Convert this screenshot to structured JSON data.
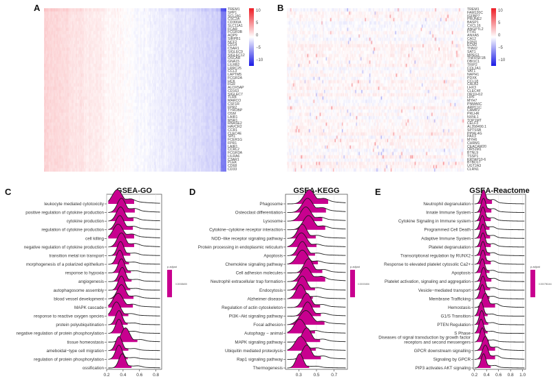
{
  "figure": {
    "panels": {
      "A": {
        "letter": "A"
      },
      "B": {
        "letter": "B"
      },
      "C": {
        "letter": "C"
      },
      "D": {
        "letter": "D"
      },
      "E": {
        "letter": "E"
      }
    }
  },
  "chart_data": [
    {
      "type": "heatmap",
      "panel": "A",
      "title": "",
      "genes": [
        "TREM1",
        "SPP1",
        "SCL2A1",
        "CSC2A",
        "CD300A",
        "SLC11A1",
        "FCAR",
        "FCGR3B",
        "AQP9",
        "SIRPB1",
        "NCF2",
        "CD14",
        "C5AR1",
        "SIGLEC9",
        "SIGLEC12",
        "OSCAR",
        "GNA15",
        "LILRB2",
        "LRRC25",
        "CCL3",
        "LAPTM5",
        "FCGR2A",
        "HCK",
        "FGR",
        "ALOX5AP",
        "CD163",
        "SIGLEC7",
        "TLR8",
        "MARCO",
        "CSF1R",
        "FPR2",
        "TYROBP",
        "OSM",
        "LAIR1",
        "MSR1",
        "RNASE2",
        "HAVCR2",
        "CCR1",
        "CLEC4E",
        "SPI1",
        "FCER1G",
        "FPR1",
        "LAIR1",
        "CCRL2",
        "FCGR3A",
        "LILRA6",
        "C3AR1",
        "PLEK",
        "CD68",
        "CD33"
      ],
      "pattern": "left columns up (red), right columns down (blue)",
      "colorbar": {
        "ticks": [
          "10",
          "5",
          "0",
          "−5",
          "−10"
        ],
        "min": -10,
        "max": 10,
        "colors": {
          "high": "#ee1c25",
          "mid": "#ffffff",
          "low": "#1a1ae6"
        }
      }
    },
    {
      "type": "heatmap",
      "panel": "B",
      "title": "",
      "genes": [
        "TREM1",
        "FAM120C",
        "IGFBP7",
        "PRUNE2",
        "BASP1",
        "CXCL16",
        "ANGPTL2",
        "FTH1",
        "ANXA5",
        "CA12",
        "EDN3",
        "ECM2",
        "TNNI2",
        "SAT1",
        "MPEG1",
        "TNFRSF1B",
        "DBI1C1",
        "TRIP2",
        "COL2A1",
        "VAT1",
        "NAPH1",
        "PDXK",
        "CCL18",
        "CALB2",
        "LHX3",
        "CLEC4F",
        "OR11H12",
        "LIPF",
        "MYH7",
        "PNMA6C",
        "ARPC1C",
        "CAMKV",
        "PRLHR",
        "NXNL1",
        "TOP1MT",
        "CELF3",
        "AL358490.1",
        "SPTSSB",
        "PPIAL4G",
        "PAX3",
        "MYH6",
        "CHRM1",
        "CEACAM20",
        "OR51M1",
        "BTNL9",
        "TSSP1",
        "KRTAP10-6",
        "BTBD17",
        "UGT2A3",
        "CLRN1"
      ],
      "pattern": "mostly near zero, scattered faint red/blue cells",
      "colorbar": {
        "ticks": [
          "10",
          "5",
          "0",
          "−5",
          "−10"
        ],
        "min": -10,
        "max": 10,
        "colors": {
          "high": "#ee1c25",
          "mid": "#ffffff",
          "low": "#1a1ae6"
        }
      }
    },
    {
      "type": "ridgeline",
      "panel": "C",
      "title": "GSEA-GO",
      "xlabel": "",
      "ylabel": "",
      "xlim": [
        0.2,
        0.87
      ],
      "xticks": [
        "0.2",
        "0.4",
        "0.6",
        "0.8"
      ],
      "xtick_values": [
        0.2,
        0.4,
        0.6,
        0.8
      ],
      "fill_color": "#c8008f",
      "legend": {
        "title": "p.adjust",
        "value_label": "0.00088455",
        "position": "right"
      },
      "categories": [
        {
          "label": "leukocyte mediated cytotoxicity",
          "peak": 0.33,
          "spread": 0.06,
          "tail": 0.5
        },
        {
          "label": "positive regulation of cytokine production",
          "peak": 0.38,
          "spread": 0.05,
          "tail": 0.45
        },
        {
          "label": "cytokine production",
          "peak": 0.37,
          "spread": 0.05,
          "tail": 0.4
        },
        {
          "label": "regulation of cytokine production",
          "peak": 0.36,
          "spread": 0.05,
          "tail": 0.4
        },
        {
          "label": "cell killing",
          "peak": 0.34,
          "spread": 0.06,
          "tail": 0.45
        },
        {
          "label": "negative regulation of cytokine production",
          "peak": 0.38,
          "spread": 0.05,
          "tail": 0.4
        },
        {
          "label": "transition metal ion transport",
          "peak": 0.37,
          "spread": 0.04,
          "tail": 0.35
        },
        {
          "label": "morphogenesis of a polarized epithelium",
          "peak": 0.36,
          "spread": 0.04,
          "tail": 0.3
        },
        {
          "label": "response to hypoxia",
          "peak": 0.38,
          "spread": 0.04,
          "tail": 0.3
        },
        {
          "label": "angiogenesis",
          "peak": 0.39,
          "spread": 0.04,
          "tail": 0.3
        },
        {
          "label": "autophagosome assembly",
          "peak": 0.38,
          "spread": 0.04,
          "tail": 0.25
        },
        {
          "label": "blood vessel development",
          "peak": 0.38,
          "spread": 0.05,
          "tail": 0.35
        },
        {
          "label": "MAPK cascade",
          "peak": 0.34,
          "spread": 0.06,
          "tail": 0.35
        },
        {
          "label": "response to reactive oxygen species",
          "peak": 0.32,
          "spread": 0.05,
          "tail": 0.3
        },
        {
          "label": "protein polyubiquitination",
          "peak": 0.35,
          "spread": 0.04,
          "tail": 0.25
        },
        {
          "label": "negative regulation of protein phosphorylation",
          "peak": 0.35,
          "spread": 0.04,
          "tail": 0.3
        },
        {
          "label": "tissue homeostasis",
          "peak": 0.43,
          "spread": 0.05,
          "tail": 0.3
        },
        {
          "label": "ameboidal−type cell migration",
          "peak": 0.35,
          "spread": 0.04,
          "tail": 0.3
        },
        {
          "label": "regulation of protein phosphorylation",
          "peak": 0.35,
          "spread": 0.04,
          "tail": 0.25
        },
        {
          "label": "ossification",
          "peak": 0.39,
          "spread": 0.04,
          "tail": 0.3
        }
      ]
    },
    {
      "type": "ridgeline",
      "panel": "D",
      "title": "GSEA-KEGG",
      "xlabel": "",
      "ylabel": "",
      "xlim": [
        0.15,
        0.85
      ],
      "xticks": [
        "0.3",
        "0.5",
        "0.7"
      ],
      "xtick_values": [
        0.3,
        0.5,
        0.7
      ],
      "fill_color": "#c8008f",
      "legend": {
        "title": "p.adjust",
        "value_label": "0.00000456",
        "position": "right"
      },
      "categories": [
        {
          "label": "Phagosome",
          "peak": 0.42,
          "spread": 0.06,
          "tail": 0.55
        },
        {
          "label": "Osteoclast differentiation",
          "peak": 0.4,
          "spread": 0.06,
          "tail": 0.5
        },
        {
          "label": "Lysosome",
          "peak": 0.38,
          "spread": 0.06,
          "tail": 0.4
        },
        {
          "label": "Cytokine−cytokine receptor interaction",
          "peak": 0.41,
          "spread": 0.06,
          "tail": 0.4
        },
        {
          "label": "NOD−like receptor signaling pathway",
          "peak": 0.34,
          "spread": 0.05,
          "tail": 0.35
        },
        {
          "label": "Protein processing in endoplasmic reticulum",
          "peak": 0.33,
          "spread": 0.06,
          "tail": 0.3
        },
        {
          "label": "Apoptosis",
          "peak": 0.34,
          "spread": 0.05,
          "tail": 0.3
        },
        {
          "label": "Chemokine signaling pathway",
          "peak": 0.34,
          "spread": 0.06,
          "tail": 0.35
        },
        {
          "label": "Cell adhesion molecules",
          "peak": 0.41,
          "spread": 0.05,
          "tail": 0.4
        },
        {
          "label": "Neutrophil extracellular trap formation",
          "peak": 0.38,
          "spread": 0.06,
          "tail": 0.55
        },
        {
          "label": "Endocytosis",
          "peak": 0.34,
          "spread": 0.05,
          "tail": 0.3
        },
        {
          "label": "Alzheimer disease",
          "peak": 0.32,
          "spread": 0.05,
          "tail": 0.3
        },
        {
          "label": "Regulation of actin cytoskeleton",
          "peak": 0.39,
          "spread": 0.05,
          "tail": 0.35
        },
        {
          "label": "PI3K−Akt signaling pathway",
          "peak": 0.4,
          "spread": 0.05,
          "tail": 0.35
        },
        {
          "label": "Focal adhesion",
          "peak": 0.38,
          "spread": 0.07,
          "tail": 0.35
        },
        {
          "label": "Autophagy − animal",
          "peak": 0.31,
          "spread": 0.06,
          "tail": 0.3
        },
        {
          "label": "MAPK signaling pathway",
          "peak": 0.39,
          "spread": 0.05,
          "tail": 0.35
        },
        {
          "label": "Ubiquitin mediated proteolysis",
          "peak": 0.32,
          "spread": 0.06,
          "tail": 0.3
        },
        {
          "label": "Rap1 signaling pathway",
          "peak": 0.39,
          "spread": 0.05,
          "tail": 0.4
        },
        {
          "label": "Thermogenesis",
          "peak": 0.31,
          "spread": 0.04,
          "tail": 0.25
        }
      ]
    },
    {
      "type": "ridgeline",
      "panel": "E",
      "title": "GSEA-Reactome",
      "xlabel": "",
      "ylabel": "",
      "xlim": [
        0.18,
        1.05
      ],
      "xticks": [
        "0.2",
        "0.4",
        "0.6",
        "0.8",
        "1.0"
      ],
      "xtick_values": [
        0.2,
        0.4,
        0.6,
        0.8,
        1.0
      ],
      "fill_color": "#c8008f",
      "legend": {
        "title": "p.adjust",
        "value_label": "0.000796164",
        "position": "right"
      },
      "categories": [
        {
          "label": "Neutrophil degranulation",
          "peak": 0.35,
          "spread": 0.04,
          "tail": 0.55
        },
        {
          "label": "Innate Immune System",
          "peak": 0.35,
          "spread": 0.04,
          "tail": 0.5
        },
        {
          "label": "Cytokine Signaling in Immune system",
          "peak": 0.34,
          "spread": 0.04,
          "tail": 0.45
        },
        {
          "label": "Programmed Cell Death",
          "peak": 0.33,
          "spread": 0.04,
          "tail": 0.4
        },
        {
          "label": "Adaptive Immune System",
          "peak": 0.34,
          "spread": 0.04,
          "tail": 0.4
        },
        {
          "label": "Platelet degranulation",
          "peak": 0.34,
          "spread": 0.04,
          "tail": 0.45
        },
        {
          "label": "Transcriptional regulation by RUNX2",
          "peak": 0.34,
          "spread": 0.04,
          "tail": 0.4
        },
        {
          "label": "Response to elevated platelet cytosolic Ca2+",
          "peak": 0.34,
          "spread": 0.04,
          "tail": 0.45
        },
        {
          "label": "Apoptosis",
          "peak": 0.33,
          "spread": 0.04,
          "tail": 0.35
        },
        {
          "label": "Platelet activation, signaling and aggregation",
          "peak": 0.35,
          "spread": 0.04,
          "tail": 0.45
        },
        {
          "label": "Vesicle−mediated transport",
          "peak": 0.34,
          "spread": 0.04,
          "tail": 0.35
        },
        {
          "label": "Membrane Trafficking",
          "peak": 0.33,
          "spread": 0.04,
          "tail": 0.35
        },
        {
          "label": "Hemostasis",
          "peak": 0.38,
          "spread": 0.05,
          "tail": 0.45
        },
        {
          "label": "G1/S Transition",
          "peak": 0.31,
          "spread": 0.04,
          "tail": 0.3
        },
        {
          "label": "PTEN Regulation",
          "peak": 0.32,
          "spread": 0.04,
          "tail": 0.3
        },
        {
          "label": "S Phase",
          "peak": 0.31,
          "spread": 0.04,
          "tail": 0.3
        },
        {
          "label": "Diseases of signal transduction by growth factor\nreceptors and second messengers",
          "peak": 0.33,
          "spread": 0.04,
          "tail": 0.3
        },
        {
          "label": "GPCR downstream signalling",
          "peak": 0.38,
          "spread": 0.05,
          "tail": 0.45
        },
        {
          "label": "Signaling by GPCR",
          "peak": 0.38,
          "spread": 0.05,
          "tail": 0.45
        },
        {
          "label": "PIP3 activates AKT signaling",
          "peak": 0.35,
          "spread": 0.04,
          "tail": 0.35
        }
      ]
    }
  ]
}
